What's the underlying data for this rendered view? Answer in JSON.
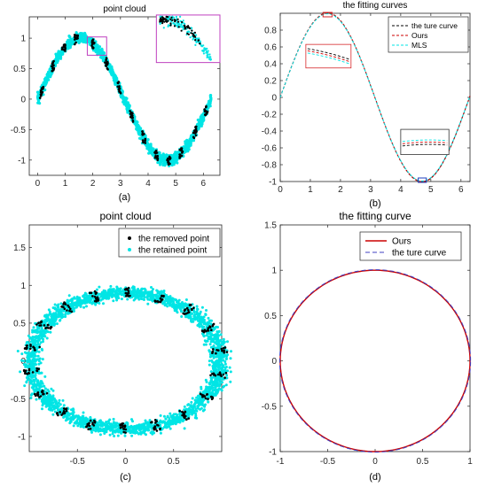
{
  "chart_data": [
    {
      "id": "a",
      "type": "scatter",
      "title": "point cloud",
      "caption": "(a)",
      "xlim": [
        -0.3,
        6.6
      ],
      "ylim": [
        -1.25,
        1.35
      ],
      "xticks": [
        0,
        1,
        2,
        3,
        4,
        5,
        6
      ],
      "yticks": [
        -1,
        -0.5,
        0,
        0.5,
        1
      ],
      "curve": "y = sin(x), x from 0 to 6.28, noisy band",
      "series": [
        {
          "role": "retained points",
          "color": "#00e5e5"
        },
        {
          "role": "removed points",
          "color": "#000000"
        }
      ],
      "zoom_box": {
        "x": [
          1.8,
          2.5
        ],
        "y": [
          0.72,
          1.02
        ],
        "color": "#bf40bf"
      },
      "inset_box": {
        "x": [
          4.3,
          6.6
        ],
        "y": [
          0.6,
          1.38
        ],
        "color": "#bf40bf"
      }
    },
    {
      "id": "b",
      "type": "line",
      "title": "the fitting curves",
      "caption": "(b)",
      "xlim": [
        0,
        6.3
      ],
      "ylim": [
        -1.0,
        1.0
      ],
      "xticks": [
        0,
        1,
        2,
        3,
        4,
        5,
        6
      ],
      "yticks": [
        -1,
        -0.8,
        -0.6,
        -0.4,
        -0.2,
        0,
        0.2,
        0.4,
        0.6,
        0.8
      ],
      "series": [
        {
          "name": "the ture curve",
          "color": "#000000",
          "style": "dashed"
        },
        {
          "name": "Ours",
          "color": "#cc0000",
          "style": "dashed"
        },
        {
          "name": "MLS",
          "color": "#00e5e5",
          "style": "dashed"
        }
      ],
      "legend_position": "top-right",
      "zoom_box_top": {
        "x": [
          1.42,
          1.72
        ],
        "y": [
          0.965,
          1.0
        ],
        "color": "#d62728"
      },
      "zoom_box_bottom": {
        "x": [
          4.58,
          4.85
        ],
        "y": [
          -1.0,
          -0.965
        ],
        "color": "#1f3fbf"
      },
      "inset_top": {
        "x": [
          0.85,
          2.35
        ],
        "y": [
          0.35,
          0.63
        ],
        "color": "#d62728"
      },
      "inset_bottom": {
        "x": [
          4.0,
          5.6
        ],
        "y": [
          -0.68,
          -0.38
        ],
        "color": "#333333"
      }
    },
    {
      "id": "c",
      "type": "scatter",
      "title": "point cloud",
      "caption": "(c)",
      "xlim": [
        -1.0,
        1.0
      ],
      "ylim": [
        -1.2,
        1.8
      ],
      "xticks": [
        -0.5,
        0,
        0.5
      ],
      "yticks": [
        -1,
        -0.5,
        0,
        0.5,
        1,
        1.5
      ],
      "curve": "ellipse x = cos(t), y = 0.88 sin(t), noisy band",
      "series": [
        {
          "name": "the removed point",
          "color": "#000000"
        },
        {
          "name": "the retained point",
          "color": "#00e5e5"
        }
      ],
      "legend_position": "top-right"
    },
    {
      "id": "d",
      "type": "line",
      "title": "the fitting curve",
      "caption": "(d)",
      "xlim": [
        -1,
        1
      ],
      "ylim": [
        -1,
        1.5
      ],
      "xticks": [
        -1,
        -0.5,
        0,
        0.5,
        1
      ],
      "yticks": [
        -1,
        -0.5,
        0,
        0.5,
        1,
        1.5
      ],
      "curve": "unit circle x = cos(t), y = sin(t)",
      "series": [
        {
          "name": "Ours",
          "color": "#cc0000",
          "style": "solid"
        },
        {
          "name": "the ture curve",
          "color": "#4040c0",
          "style": "dashed"
        }
      ],
      "legend_position": "top-right"
    }
  ]
}
